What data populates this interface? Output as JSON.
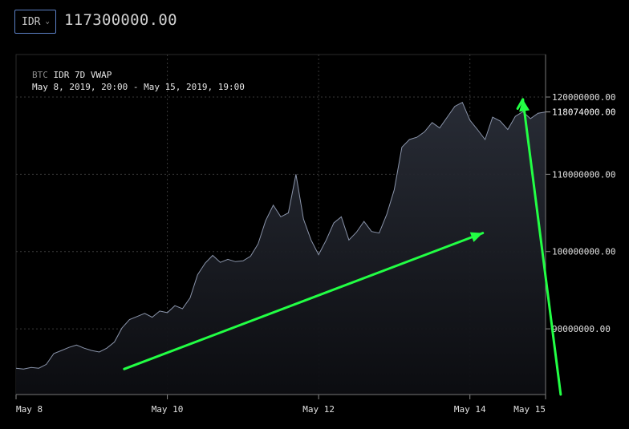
{
  "header": {
    "currency": "IDR",
    "price": "117300000.00"
  },
  "chart_info": {
    "base": "BTC",
    "quote_label": "IDR 7D VWAP",
    "range": "May 8, 2019, 20:00 - May 15, 2019, 19:00"
  },
  "colors": {
    "line": "#8a94aa",
    "grid": "#3a3a3a",
    "annotation_arrow": "#22ff44",
    "accent_border": "#5b7fc4"
  },
  "chart_data": {
    "type": "area",
    "x_unit": "days since May 8, 2019",
    "x": [
      0,
      0.1,
      0.2,
      0.3,
      0.4,
      0.5,
      0.6,
      0.7,
      0.8,
      0.9,
      1.0,
      1.1,
      1.2,
      1.3,
      1.4,
      1.5,
      1.6,
      1.7,
      1.8,
      1.9,
      2.0,
      2.1,
      2.2,
      2.3,
      2.4,
      2.5,
      2.6,
      2.7,
      2.8,
      2.9,
      3.0,
      3.1,
      3.2,
      3.3,
      3.4,
      3.5,
      3.6,
      3.7,
      3.8,
      3.9,
      4.0,
      4.1,
      4.2,
      4.3,
      4.4,
      4.5,
      4.6,
      4.7,
      4.8,
      4.9,
      5.0,
      5.1,
      5.2,
      5.3,
      5.4,
      5.5,
      5.6,
      5.7,
      5.8,
      5.9,
      6.0,
      6.1,
      6.2,
      6.3,
      6.4,
      6.5,
      6.6,
      6.7,
      6.8,
      6.9,
      7.0
    ],
    "values": [
      84.9,
      84.8,
      85.0,
      84.9,
      85.4,
      86.8,
      87.2,
      87.6,
      87.9,
      87.5,
      87.2,
      87.0,
      87.5,
      88.3,
      90.1,
      91.2,
      91.6,
      92.0,
      91.5,
      92.3,
      92.1,
      93.0,
      92.6,
      94.0,
      97.0,
      98.5,
      99.5,
      98.6,
      99.0,
      98.7,
      98.8,
      99.4,
      101.0,
      104.0,
      106.0,
      104.5,
      105.0,
      110.0,
      104.2,
      101.5,
      99.6,
      101.5,
      103.7,
      104.5,
      101.5,
      102.5,
      103.9,
      102.6,
      102.4,
      104.8,
      108.0,
      113.5,
      114.5,
      114.8,
      115.5,
      116.7,
      116.0,
      117.4,
      118.8,
      119.3,
      117.0,
      115.8,
      114.5,
      117.4,
      116.9,
      115.8,
      117.5,
      118.1,
      117.2,
      117.9,
      118.07
    ],
    "x_ticks": [
      {
        "x": 0,
        "label": "May 8"
      },
      {
        "x": 2,
        "label": "May 10"
      },
      {
        "x": 4,
        "label": "May 12"
      },
      {
        "x": 6,
        "label": "May 14"
      },
      {
        "x": 7,
        "label": "May 15"
      }
    ],
    "y_ticks": [
      {
        "y": 90,
        "label": "90000000.00"
      },
      {
        "y": 100,
        "label": "100000000.00"
      },
      {
        "y": 110,
        "label": "110000000.00"
      },
      {
        "y": 120,
        "label": "120000000.00"
      }
    ],
    "y_unit": "million IDR",
    "ylim": [
      81.5,
      125.5
    ],
    "xlim": [
      0,
      7
    ],
    "last_value_label": "118074000.00",
    "grid": true,
    "annotations": [
      {
        "type": "arrow",
        "from": [
          1.43,
          84.8
        ],
        "to": [
          6.17,
          102.4
        ]
      },
      {
        "type": "arrow",
        "from": [
          7.2,
          81.5
        ],
        "to": [
          6.7,
          119.7
        ]
      },
      {
        "type": "arrow",
        "from": [
          6.63,
          118.5
        ],
        "to": [
          6.7,
          119.7
        ]
      }
    ]
  }
}
